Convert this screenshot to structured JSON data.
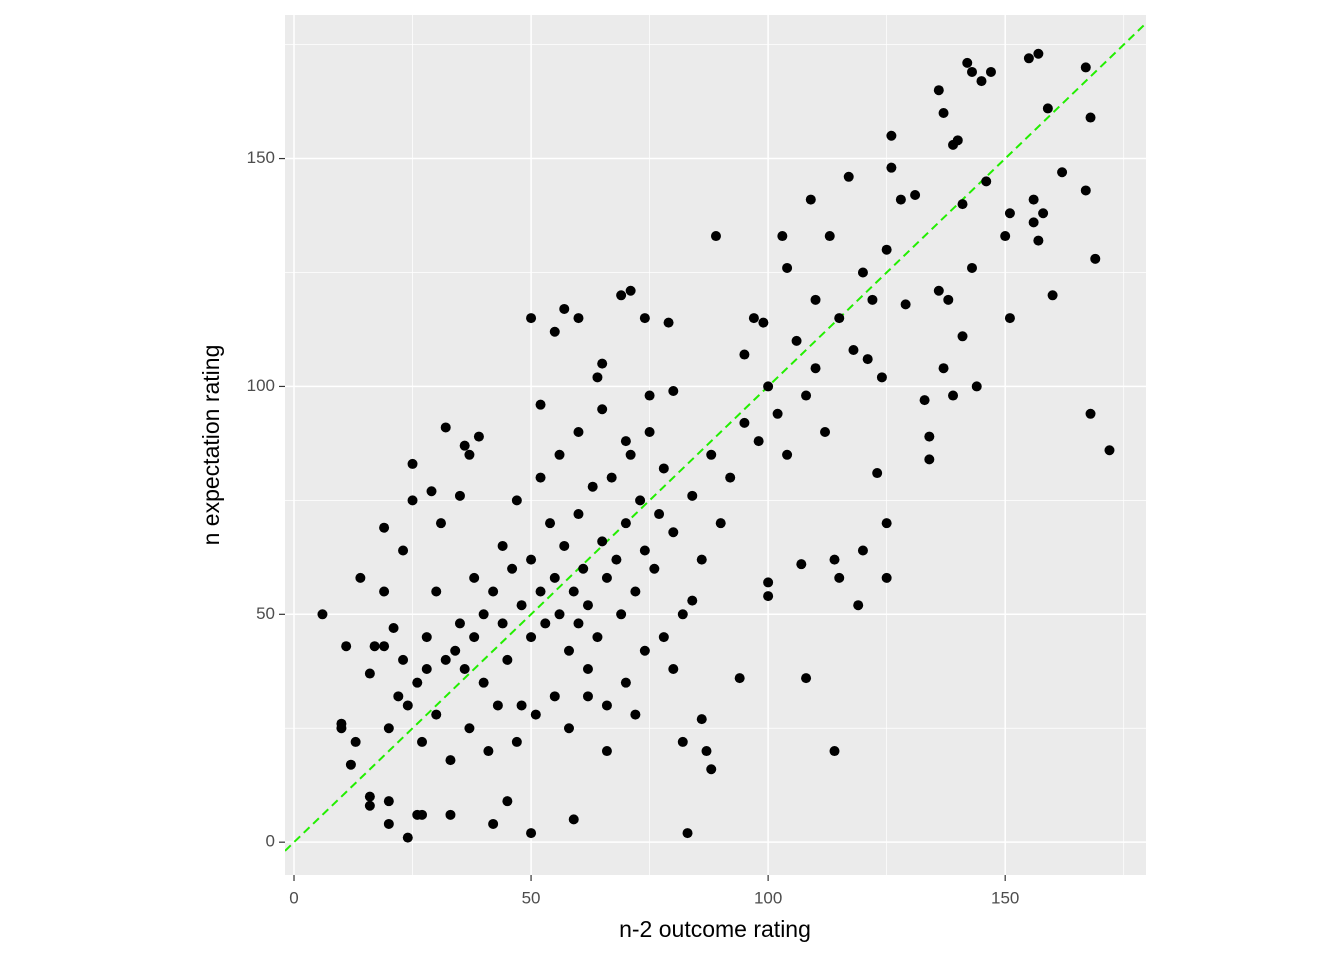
{
  "chart_data": {
    "type": "scatter",
    "x_label": "n-2 outcome rating",
    "y_label": "n expectation rating",
    "xlim": [
      -1.9,
      179.7
    ],
    "ylim": [
      -7.2,
      181.5
    ],
    "xticks": [
      0,
      50,
      100,
      150
    ],
    "yticks": [
      0,
      50,
      100,
      150
    ],
    "x_minor_ticks": [
      25,
      75,
      125,
      175
    ],
    "y_minor_ticks": [
      25,
      75,
      125,
      175
    ],
    "grid": true,
    "color": "#000000",
    "reference_line": {
      "slope": 1,
      "intercept": 0,
      "color": "#22ee00"
    },
    "points": [
      [
        6,
        50
      ],
      [
        10,
        26
      ],
      [
        10,
        25
      ],
      [
        11,
        43
      ],
      [
        12,
        17
      ],
      [
        13,
        22
      ],
      [
        14,
        58
      ],
      [
        16,
        8
      ],
      [
        16,
        10
      ],
      [
        16,
        37
      ],
      [
        17,
        43
      ],
      [
        19,
        69
      ],
      [
        19,
        55
      ],
      [
        19,
        43
      ],
      [
        20,
        4
      ],
      [
        20,
        9
      ],
      [
        21,
        47
      ],
      [
        23,
        64
      ],
      [
        24,
        1
      ],
      [
        25,
        83
      ],
      [
        25,
        75
      ],
      [
        26,
        6
      ],
      [
        27,
        6
      ],
      [
        29,
        77
      ],
      [
        31,
        70
      ],
      [
        32,
        91
      ],
      [
        33,
        6
      ],
      [
        35,
        76
      ],
      [
        36,
        87
      ],
      [
        37,
        85
      ],
      [
        39,
        89
      ],
      [
        42,
        4
      ],
      [
        45,
        9
      ],
      [
        50,
        2
      ],
      [
        50,
        115
      ],
      [
        52,
        96
      ],
      [
        55,
        112
      ],
      [
        57,
        117
      ],
      [
        59,
        5
      ],
      [
        60,
        115
      ],
      [
        64,
        102
      ],
      [
        65,
        105
      ],
      [
        69,
        120
      ],
      [
        71,
        121
      ],
      [
        74,
        115
      ],
      [
        75,
        98
      ],
      [
        79,
        114
      ],
      [
        80,
        99
      ],
      [
        82,
        22
      ],
      [
        83,
        2
      ],
      [
        86,
        27
      ],
      [
        87,
        20
      ],
      [
        88,
        16
      ],
      [
        89,
        133
      ],
      [
        94,
        36
      ],
      [
        95,
        107
      ],
      [
        97,
        115
      ],
      [
        99,
        114
      ],
      [
        100,
        57
      ],
      [
        100,
        54
      ],
      [
        103,
        133
      ],
      [
        104,
        126
      ],
      [
        107,
        61
      ],
      [
        108,
        36
      ],
      [
        109,
        141
      ],
      [
        110,
        119
      ],
      [
        113,
        133
      ],
      [
        114,
        20
      ],
      [
        114,
        62
      ],
      [
        115,
        58
      ],
      [
        117,
        146
      ],
      [
        119,
        52
      ],
      [
        120,
        64
      ],
      [
        121,
        106
      ],
      [
        122,
        119
      ],
      [
        123,
        81
      ],
      [
        124,
        102
      ],
      [
        125,
        130
      ],
      [
        125,
        58
      ],
      [
        125,
        70
      ],
      [
        126,
        155
      ],
      [
        126,
        148
      ],
      [
        128,
        141
      ],
      [
        129,
        118
      ],
      [
        131,
        142
      ],
      [
        133,
        97
      ],
      [
        134,
        89
      ],
      [
        134,
        84
      ],
      [
        136,
        165
      ],
      [
        136,
        121
      ],
      [
        137,
        104
      ],
      [
        137,
        160
      ],
      [
        138,
        119
      ],
      [
        139,
        98
      ],
      [
        139,
        153
      ],
      [
        140,
        154
      ],
      [
        141,
        111
      ],
      [
        141,
        140
      ],
      [
        142,
        171
      ],
      [
        143,
        169
      ],
      [
        143,
        126
      ],
      [
        144,
        100
      ],
      [
        145,
        167
      ],
      [
        146,
        145
      ],
      [
        147,
        169
      ],
      [
        150,
        133
      ],
      [
        151,
        138
      ],
      [
        151,
        115
      ],
      [
        155,
        172
      ],
      [
        156,
        141
      ],
      [
        156,
        136
      ],
      [
        157,
        173
      ],
      [
        157,
        132
      ],
      [
        158,
        138
      ],
      [
        159,
        161
      ],
      [
        160,
        120
      ],
      [
        162,
        147
      ],
      [
        167,
        143
      ],
      [
        167,
        170
      ],
      [
        168,
        159
      ],
      [
        168,
        94
      ],
      [
        169,
        128
      ],
      [
        172,
        86
      ],
      [
        20,
        25
      ],
      [
        22,
        32
      ],
      [
        24,
        30
      ],
      [
        26,
        35
      ],
      [
        28,
        38
      ],
      [
        30,
        28
      ],
      [
        32,
        40
      ],
      [
        34,
        42
      ],
      [
        36,
        38
      ],
      [
        38,
        45
      ],
      [
        40,
        50
      ],
      [
        40,
        35
      ],
      [
        42,
        55
      ],
      [
        44,
        48
      ],
      [
        45,
        40
      ],
      [
        46,
        60
      ],
      [
        48,
        52
      ],
      [
        48,
        30
      ],
      [
        50,
        45
      ],
      [
        50,
        62
      ],
      [
        52,
        55
      ],
      [
        53,
        48
      ],
      [
        54,
        70
      ],
      [
        55,
        58
      ],
      [
        56,
        50
      ],
      [
        57,
        65
      ],
      [
        58,
        42
      ],
      [
        59,
        55
      ],
      [
        60,
        72
      ],
      [
        60,
        48
      ],
      [
        61,
        60
      ],
      [
        62,
        52
      ],
      [
        63,
        78
      ],
      [
        64,
        45
      ],
      [
        65,
        66
      ],
      [
        66,
        58
      ],
      [
        67,
        80
      ],
      [
        68,
        62
      ],
      [
        69,
        50
      ],
      [
        70,
        70
      ],
      [
        71,
        85
      ],
      [
        72,
        55
      ],
      [
        73,
        75
      ],
      [
        74,
        64
      ],
      [
        75,
        90
      ],
      [
        76,
        60
      ],
      [
        77,
        72
      ],
      [
        78,
        82
      ],
      [
        80,
        68
      ],
      [
        82,
        50
      ],
      [
        84,
        76
      ],
      [
        86,
        62
      ],
      [
        88,
        85
      ],
      [
        90,
        70
      ],
      [
        92,
        80
      ],
      [
        95,
        92
      ],
      [
        98,
        88
      ],
      [
        100,
        100
      ],
      [
        102,
        94
      ],
      [
        104,
        85
      ],
      [
        106,
        110
      ],
      [
        108,
        98
      ],
      [
        110,
        104
      ],
      [
        112,
        90
      ],
      [
        115,
        115
      ],
      [
        118,
        108
      ],
      [
        120,
        125
      ],
      [
        23,
        40
      ],
      [
        27,
        22
      ],
      [
        33,
        18
      ],
      [
        37,
        25
      ],
      [
        41,
        20
      ],
      [
        43,
        30
      ],
      [
        47,
        22
      ],
      [
        51,
        28
      ],
      [
        55,
        32
      ],
      [
        58,
        25
      ],
      [
        62,
        38
      ],
      [
        66,
        30
      ],
      [
        70,
        35
      ],
      [
        74,
        42
      ],
      [
        78,
        45
      ],
      [
        44,
        65
      ],
      [
        38,
        58
      ],
      [
        35,
        48
      ],
      [
        30,
        55
      ],
      [
        28,
        45
      ],
      [
        47,
        75
      ],
      [
        52,
        80
      ],
      [
        56,
        85
      ],
      [
        60,
        90
      ],
      [
        65,
        95
      ],
      [
        70,
        88
      ],
      [
        62,
        32
      ],
      [
        66,
        20
      ],
      [
        72,
        28
      ],
      [
        80,
        38
      ],
      [
        84,
        53
      ]
    ]
  }
}
